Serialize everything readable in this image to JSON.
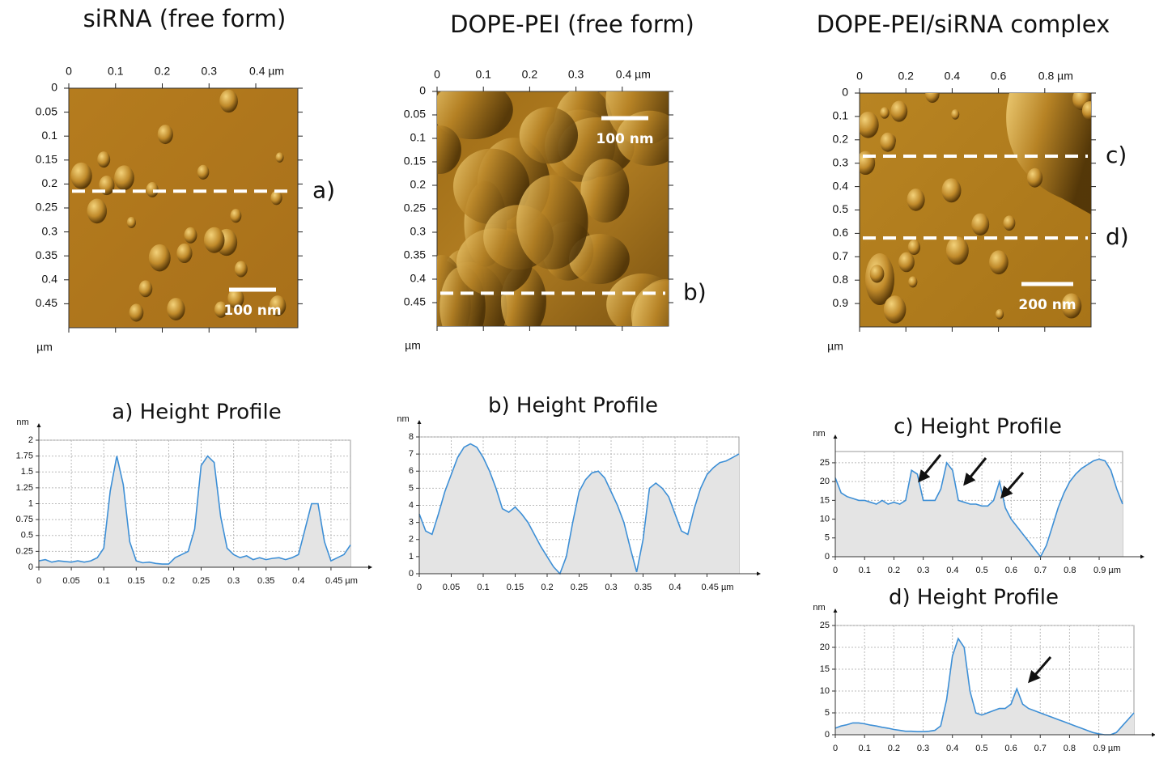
{
  "chart_data": [
    {
      "type": "image",
      "title": "siRNA (free form)",
      "ylabel": "µm",
      "scale_bar": "100 nm",
      "xlim": [
        0,
        0.49
      ],
      "ylim": [
        0,
        0.5
      ],
      "xticks": [
        0,
        0.1,
        0.2,
        0.3,
        {
          "value": 0.4,
          "label": "0.4 µm"
        }
      ],
      "yticks": [
        0,
        0.05,
        0.1,
        0.15,
        0.2,
        0.25,
        0.3,
        0.35,
        0.4,
        0.45
      ],
      "lines": [
        {
          "label": "a)",
          "y": 0.215
        }
      ]
    },
    {
      "type": "image",
      "title": "DOPE-PEI (free form)",
      "ylabel": "µm",
      "scale_bar": "100 nm",
      "xlim": [
        0,
        0.5
      ],
      "ylim": [
        0,
        0.5
      ],
      "xticks": [
        0,
        0.1,
        0.2,
        0.3,
        {
          "value": 0.4,
          "label": "0.4 µm"
        }
      ],
      "yticks": [
        0,
        0.05,
        0.1,
        0.15,
        0.2,
        0.25,
        0.3,
        0.35,
        0.4,
        0.45
      ],
      "lines": [
        {
          "label": "b)",
          "y": 0.43
        }
      ]
    },
    {
      "type": "image",
      "title": "DOPE-PEI/siRNA complex",
      "ylabel": "µm",
      "scale_bar": "200 nm",
      "xlim": [
        0,
        1
      ],
      "ylim": [
        0,
        1
      ],
      "xticks": [
        0,
        0.2,
        0.4,
        0.6,
        {
          "value": 0.8,
          "label": "0.8 µm"
        }
      ],
      "yticks": [
        0,
        0.1,
        0.2,
        0.3,
        0.4,
        0.5,
        0.6,
        0.7,
        0.8,
        0.9
      ],
      "lines": [
        {
          "label": "c)",
          "y": 0.27
        },
        {
          "label": "d)",
          "y": 0.62
        }
      ]
    },
    {
      "type": "area",
      "title": "a) Height Profile",
      "ylabel": "nm",
      "color": "#3d8fd6",
      "fill": "#e4e4e4",
      "grid": true,
      "xlim": [
        0,
        0.48
      ],
      "ylim": [
        0,
        2
      ],
      "xticks": [
        0,
        0.05,
        0.1,
        0.15,
        0.2,
        0.25,
        0.3,
        0.35,
        0.4,
        {
          "value": 0.45,
          "label": "0.45 µm"
        }
      ],
      "yticks": [
        0,
        0.25,
        0.5,
        0.75,
        1,
        1.25,
        1.5,
        1.75,
        2
      ],
      "x": [
        0,
        0.01,
        0.02,
        0.03,
        0.04,
        0.05,
        0.06,
        0.07,
        0.08,
        0.09,
        0.1,
        0.11,
        0.12,
        0.13,
        0.14,
        0.15,
        0.16,
        0.17,
        0.18,
        0.19,
        0.2,
        0.21,
        0.22,
        0.23,
        0.24,
        0.25,
        0.26,
        0.27,
        0.28,
        0.29,
        0.3,
        0.31,
        0.32,
        0.33,
        0.34,
        0.35,
        0.36,
        0.37,
        0.38,
        0.39,
        0.4,
        0.41,
        0.42,
        0.43,
        0.44,
        0.45,
        0.46,
        0.47,
        0.48
      ],
      "values": [
        0.1,
        0.12,
        0.08,
        0.1,
        0.09,
        0.08,
        0.1,
        0.08,
        0.1,
        0.15,
        0.3,
        1.2,
        1.75,
        1.3,
        0.4,
        0.1,
        0.07,
        0.08,
        0.06,
        0.05,
        0.05,
        0.15,
        0.2,
        0.25,
        0.6,
        1.6,
        1.75,
        1.65,
        0.8,
        0.3,
        0.2,
        0.15,
        0.18,
        0.12,
        0.15,
        0.12,
        0.14,
        0.15,
        0.12,
        0.15,
        0.2,
        0.6,
        1.0,
        1.0,
        0.4,
        0.1,
        0.15,
        0.2,
        0.35
      ]
    },
    {
      "type": "area",
      "title": "b) Height Profile",
      "ylabel": "nm",
      "color": "#3d8fd6",
      "fill": "#e4e4e4",
      "grid": true,
      "xlim": [
        0,
        0.5
      ],
      "ylim": [
        0,
        8
      ],
      "xticks": [
        0,
        0.05,
        0.1,
        0.15,
        0.2,
        0.25,
        0.3,
        0.35,
        0.4,
        {
          "value": 0.45,
          "label": "0.45 µm"
        }
      ],
      "yticks": [
        0,
        1,
        2,
        3,
        4,
        5,
        6,
        7,
        8
      ],
      "x": [
        0,
        0.01,
        0.02,
        0.03,
        0.04,
        0.05,
        0.06,
        0.07,
        0.08,
        0.09,
        0.1,
        0.11,
        0.12,
        0.13,
        0.14,
        0.15,
        0.16,
        0.17,
        0.18,
        0.19,
        0.2,
        0.21,
        0.22,
        0.23,
        0.24,
        0.25,
        0.26,
        0.27,
        0.28,
        0.29,
        0.3,
        0.31,
        0.32,
        0.33,
        0.34,
        0.35,
        0.36,
        0.37,
        0.38,
        0.39,
        0.4,
        0.41,
        0.42,
        0.43,
        0.44,
        0.45,
        0.46,
        0.47,
        0.48,
        0.49,
        0.5
      ],
      "values": [
        3.5,
        2.5,
        2.3,
        3.5,
        4.8,
        5.8,
        6.8,
        7.4,
        7.6,
        7.4,
        6.8,
        6,
        5,
        3.8,
        3.6,
        3.9,
        3.5,
        3,
        2.3,
        1.6,
        1,
        0.4,
        0,
        1,
        3,
        4.8,
        5.5,
        5.9,
        6,
        5.6,
        4.8,
        4,
        3,
        1.5,
        0.1,
        2,
        5,
        5.3,
        5,
        4.5,
        3.5,
        2.5,
        2.3,
        3.8,
        5,
        5.8,
        6.2,
        6.5,
        6.6,
        6.8,
        7
      ]
    },
    {
      "type": "area",
      "title": "c) Height Profile",
      "ylabel": "nm",
      "color": "#3d8fd6",
      "fill": "#e4e4e4",
      "grid": true,
      "xlim": [
        0,
        0.98
      ],
      "ylim": [
        0,
        28
      ],
      "xticks": [
        0,
        0.1,
        0.2,
        0.3,
        0.4,
        0.5,
        0.6,
        0.7,
        0.8,
        {
          "value": 0.9,
          "label": "0.9 µm"
        }
      ],
      "yticks": [
        0,
        5,
        10,
        15,
        20,
        25
      ],
      "x": [
        0,
        0.02,
        0.04,
        0.06,
        0.08,
        0.1,
        0.12,
        0.14,
        0.16,
        0.18,
        0.2,
        0.22,
        0.24,
        0.26,
        0.28,
        0.3,
        0.32,
        0.34,
        0.36,
        0.38,
        0.4,
        0.42,
        0.44,
        0.46,
        0.48,
        0.5,
        0.52,
        0.54,
        0.56,
        0.58,
        0.6,
        0.62,
        0.64,
        0.66,
        0.68,
        0.7,
        0.72,
        0.74,
        0.76,
        0.78,
        0.8,
        0.82,
        0.84,
        0.86,
        0.88,
        0.9,
        0.92,
        0.94,
        0.96,
        0.98
      ],
      "values": [
        21,
        17,
        16,
        15.5,
        15,
        15,
        14.5,
        14,
        15,
        14,
        14.5,
        14,
        15,
        23,
        22,
        15,
        15,
        15,
        18,
        25,
        23,
        15,
        14.5,
        14,
        14,
        13.5,
        13.5,
        15,
        20,
        13,
        10,
        8,
        6,
        4,
        2,
        0,
        3,
        8,
        13,
        17,
        20,
        22,
        23.5,
        24.5,
        25.5,
        26,
        25.5,
        23,
        18,
        14
      ]
    },
    {
      "type": "area",
      "title": "d) Height Profile",
      "ylabel": "nm",
      "color": "#3d8fd6",
      "fill": "#e4e4e4",
      "grid": true,
      "xlim": [
        0,
        1.02
      ],
      "ylim": [
        0,
        25
      ],
      "xticks": [
        0,
        0.1,
        0.2,
        0.3,
        0.4,
        0.5,
        0.6,
        0.7,
        0.8,
        {
          "value": 0.9,
          "label": "0.9 µm"
        }
      ],
      "yticks": [
        0,
        5,
        10,
        15,
        20,
        25
      ],
      "x": [
        0,
        0.02,
        0.04,
        0.06,
        0.08,
        0.1,
        0.12,
        0.14,
        0.16,
        0.18,
        0.2,
        0.22,
        0.24,
        0.26,
        0.28,
        0.3,
        0.32,
        0.34,
        0.36,
        0.38,
        0.4,
        0.42,
        0.44,
        0.46,
        0.48,
        0.5,
        0.52,
        0.54,
        0.56,
        0.58,
        0.6,
        0.62,
        0.64,
        0.66,
        0.68,
        0.7,
        0.72,
        0.74,
        0.76,
        0.78,
        0.8,
        0.82,
        0.84,
        0.86,
        0.88,
        0.9,
        0.92,
        0.94,
        0.96,
        0.98,
        1.0,
        1.02
      ],
      "values": [
        1.5,
        2,
        2.3,
        2.7,
        2.7,
        2.5,
        2.2,
        2,
        1.7,
        1.5,
        1.2,
        1,
        0.8,
        0.8,
        0.7,
        0.7,
        0.8,
        1,
        2,
        8,
        18,
        22,
        20,
        10,
        5,
        4.5,
        5,
        5.5,
        6,
        6,
        7,
        10.5,
        7,
        6,
        5.5,
        5,
        4.5,
        4,
        3.5,
        3,
        2.5,
        2,
        1.5,
        1,
        0.5,
        0.2,
        0,
        0,
        0.5,
        2,
        3.5,
        5
      ]
    }
  ]
}
